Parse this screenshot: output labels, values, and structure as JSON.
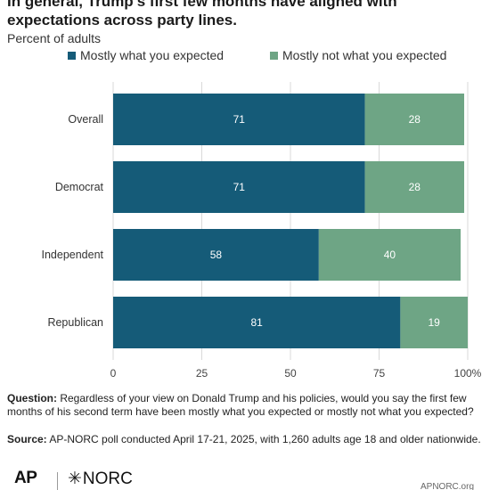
{
  "title": "In general, Trump's first few months have aligned with expectations across party lines.",
  "subtitle": "Percent of adults",
  "colors": {
    "expected": "#155b78",
    "not_expected": "#6ea585",
    "grid": "#d9d9d9",
    "bar_text": "#ffffff"
  },
  "chart_data": {
    "type": "bar",
    "orientation": "horizontal",
    "stacked": true,
    "title": "In general, Trump's first few months have aligned with expectations across party lines.",
    "subtitle": "Percent of adults",
    "categories": [
      "Overall",
      "Democrat",
      "Independent",
      "Republican"
    ],
    "series": [
      {
        "name": "Mostly what you expected",
        "values": [
          71,
          71,
          58,
          81
        ]
      },
      {
        "name": "Mostly not what you expected",
        "values": [
          28,
          28,
          40,
          19
        ]
      }
    ],
    "xlim": [
      0,
      100
    ],
    "x_ticks": [
      "0",
      "25",
      "50",
      "75",
      "100%"
    ],
    "grid": true,
    "legend_position": "top"
  },
  "notes": {
    "question_label": "Question:",
    "question_text": "Regardless of your view on Donald Trump and his policies, would you say the first few months of his second term have been mostly what you expected or mostly not what you expected?",
    "source_label": "Source:",
    "source_text": "AP-NORC poll conducted April 17-21, 2025, with 1,260 adults age 18 and older nationwide."
  },
  "footer": {
    "logo_ap": "AP",
    "logo_norc_star": "✳",
    "logo_norc": "NORC",
    "url": "APNORC.org"
  }
}
